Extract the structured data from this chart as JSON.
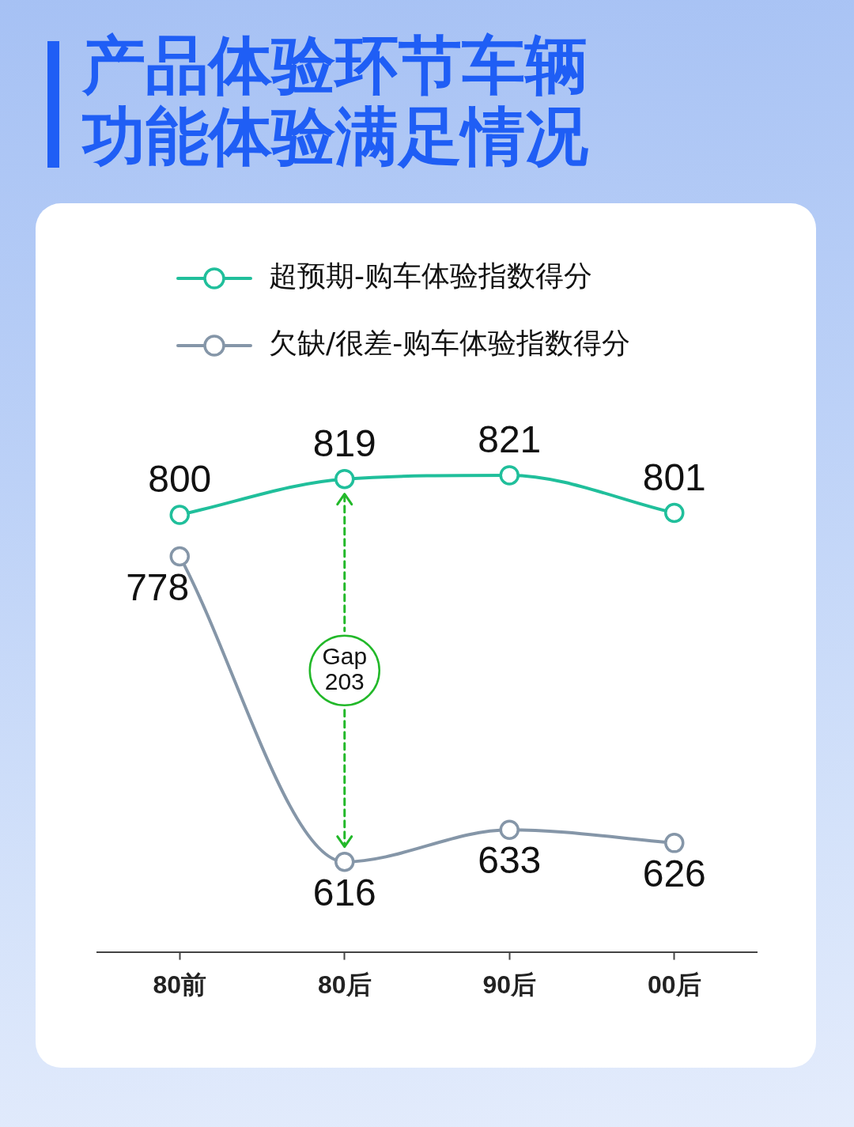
{
  "chart_data": {
    "type": "line",
    "title": "产品体验环节车辆功能体验满足情况",
    "categories": [
      "80前",
      "80后",
      "90后",
      "00后"
    ],
    "series": [
      {
        "name": "超预期-购车体验指数得分",
        "color": "#20bf9b",
        "values": [
          800,
          819,
          821,
          801
        ]
      },
      {
        "name": "欠缺/很差-购车体验指数得分",
        "color": "#8596a8",
        "values": [
          778,
          616,
          633,
          626
        ]
      }
    ],
    "annotations": [
      "Gap 203"
    ],
    "data_labels": true,
    "legend": "top",
    "marker": "circle",
    "line_style": "solid"
  }
}
